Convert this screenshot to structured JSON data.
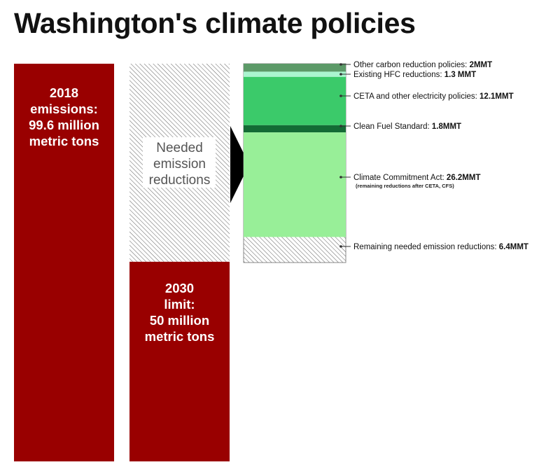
{
  "title": "Washington's climate policies",
  "chart_data": {
    "type": "bar",
    "unit": "MMT",
    "bars": [
      {
        "key": "emissions_2018",
        "value": 99.6,
        "color": "#990000",
        "label_lines": [
          "2018",
          "emissions:",
          "99.6 million",
          "metric tons"
        ]
      },
      {
        "key": "limit_2030",
        "value": 50,
        "color": "#990000",
        "label_lines": [
          "2030",
          "limit:",
          "50 million",
          "metric tons"
        ]
      },
      {
        "key": "needed_reductions",
        "value": 49.6,
        "pattern": "hatch",
        "label_lines": [
          "Needed",
          "emission",
          "reductions"
        ]
      }
    ],
    "breakdown": [
      {
        "name": "Other carbon reduction policies: ",
        "value_label": "2MMT",
        "value": 2,
        "color": "#5c9a68"
      },
      {
        "name": "Existing HFC reductions: ",
        "value_label": "1.3 MMT",
        "value": 1.3,
        "color": "#aaf5cf"
      },
      {
        "name": "CETA and other electricity policies: ",
        "value_label": "12.1MMT",
        "value": 12.1,
        "color": "#3bca6a"
      },
      {
        "name": "Clean Fuel Standard: ",
        "value_label": "1.8MMT",
        "value": 1.8,
        "color": "#136b35"
      },
      {
        "name": "Climate Commitment Act: ",
        "value_label": "26.2MMT",
        "value": 26.2,
        "color": "#98ef98",
        "note": "(remaining reductions after CETA, CFS)"
      },
      {
        "name": "Remaining needed emission reductions: ",
        "value_label": "6.4MMT",
        "value": 6.4,
        "pattern": "hatch"
      }
    ],
    "colors": {
      "hatch_line": "#6b6b6b",
      "arrow": "#000000",
      "leader": "#333333"
    }
  }
}
